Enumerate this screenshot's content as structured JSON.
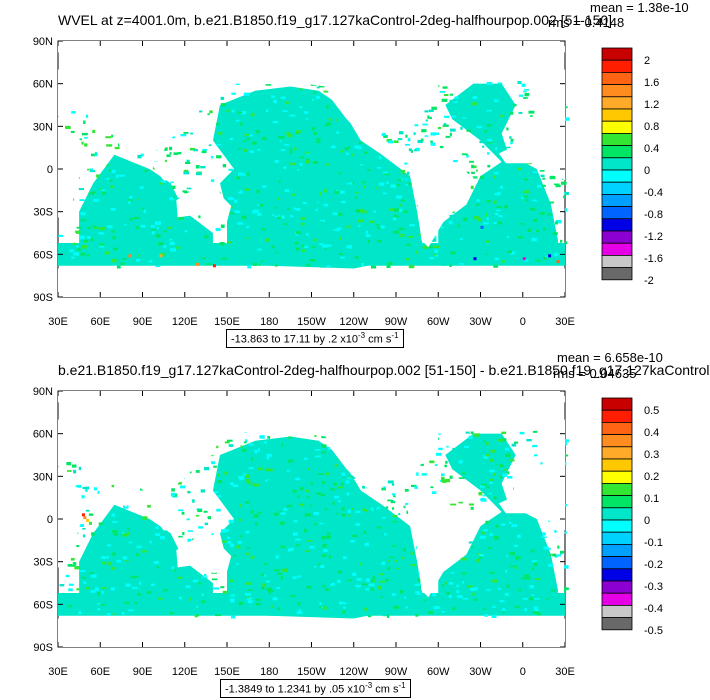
{
  "panels": [
    {
      "title": "WVEL at z=4001.0m, b.e21.B1850.f19_g17.127kaControl-2deg-halfhourpop.002 [51-150]",
      "mean_text": "mean = 1.38e-10",
      "rms_text": "rms = 0.4148",
      "range_text": "-13.863 to 17.11 by .2 x10",
      "range_exp": "-3",
      "range_units": " cm s",
      "range_units_exp": "-1",
      "colorbar_labels": [
        "2",
        "1.6",
        "1.2",
        "0.8",
        "0.4",
        "0",
        "-0.4",
        "-0.8",
        "-1.2",
        "-1.6",
        "-2"
      ]
    },
    {
      "title": "b.e21.B1850.f19_g17.127kaControl-2deg-halfhourpop.002 [51-150] - b.e21.B1850.f19_g17.127kaControl",
      "mean_text": "mean = 6.658e-10",
      "rms_text": "rms = 0.04635",
      "range_text": "-1.3849 to 1.2341 by .05 x10",
      "range_exp": "-3",
      "range_units": " cm s",
      "range_units_exp": "-1",
      "colorbar_labels": [
        "0.5",
        "0.4",
        "0.3",
        "0.2",
        "0.1",
        "0",
        "-0.1",
        "-0.2",
        "-0.3",
        "-0.4",
        "-0.5"
      ]
    }
  ],
  "axes": {
    "lat_ticks": [
      "90N",
      "60N",
      "30N",
      "0",
      "30S",
      "60S",
      "90S"
    ],
    "lon_ticks": [
      "30E",
      "60E",
      "90E",
      "120E",
      "150E",
      "180",
      "150W",
      "120W",
      "90W",
      "60W",
      "30W",
      "0",
      "30E"
    ]
  },
  "colors": {
    "palette": [
      "#696969",
      "#c8c8c8",
      "#e600e6",
      "#8c00d2",
      "#0000e6",
      "#0064ff",
      "#00a0ff",
      "#00d2ff",
      "#00ffff",
      "#00e6c8",
      "#00e664",
      "#32e632",
      "#ffff00",
      "#ffc800",
      "#ffaa28",
      "#ff8c1e",
      "#ff6414",
      "#ff1e00",
      "#c80000"
    ],
    "ocean_fill": "#ffffff"
  },
  "chart_data": [
    {
      "type": "heatmap",
      "variable": "WVEL",
      "level": "z=4001.0m",
      "mean": 1.38e-10,
      "rms": 0.4148,
      "min": -13.863,
      "max": 17.11,
      "interval": 0.2,
      "units": "x10^-3 cm s^-1",
      "levels": [
        -2,
        -1.8,
        -1.6,
        -1.4,
        -1.2,
        -1,
        -0.8,
        -0.6,
        -0.4,
        -0.2,
        0,
        0.2,
        0.4,
        0.6,
        0.8,
        1,
        1.2,
        1.4,
        1.6,
        1.8,
        2
      ],
      "xlim": [
        30,
        390
      ],
      "ylim": [
        -90,
        90
      ],
      "grid": false
    },
    {
      "type": "heatmap",
      "mean": 6.658e-10,
      "rms": 0.04635,
      "min": -1.3849,
      "max": 1.2341,
      "interval": 0.05,
      "units": "x10^-3 cm s^-1",
      "levels": [
        -0.5,
        -0.45,
        -0.4,
        -0.35,
        -0.3,
        -0.25,
        -0.2,
        -0.15,
        -0.1,
        -0.05,
        0,
        0.05,
        0.1,
        0.15,
        0.2,
        0.25,
        0.3,
        0.35,
        0.4,
        0.45,
        0.5
      ],
      "xlim": [
        30,
        390
      ],
      "ylim": [
        -90,
        90
      ],
      "grid": false
    }
  ]
}
